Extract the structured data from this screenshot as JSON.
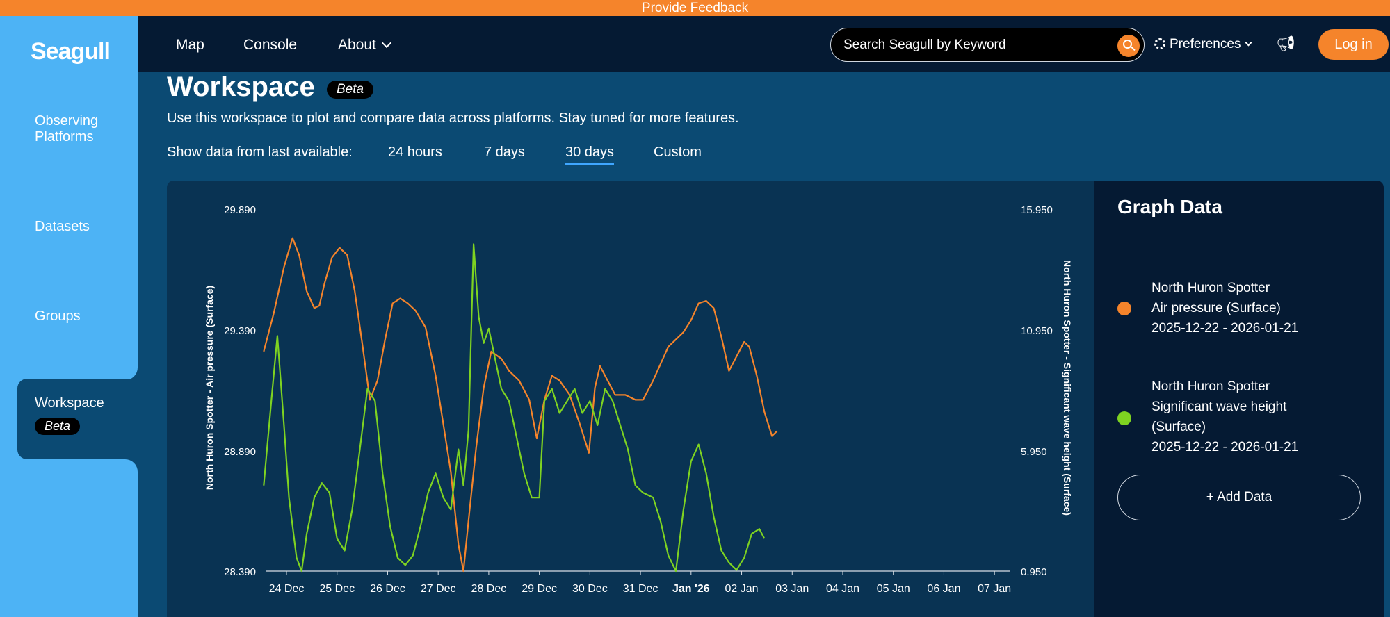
{
  "feedback_bar": {
    "label": "Provide Feedback"
  },
  "sidebar": {
    "logo": "Seagull",
    "items": [
      {
        "label_line1": "Observing",
        "label_line2": "Platforms"
      },
      {
        "label": "Datasets"
      },
      {
        "label": "Groups"
      },
      {
        "label": "Workspace",
        "badge": "Beta",
        "active": true
      }
    ]
  },
  "topnav": {
    "links": [
      {
        "label": "Map"
      },
      {
        "label": "Console"
      },
      {
        "label": "About"
      }
    ],
    "search_placeholder": "Search Seagull by Keyword",
    "preferences_label": "Preferences",
    "login_label": "Log in"
  },
  "workspace": {
    "title": "Workspace",
    "badge": "Beta",
    "subtitle": "Use this workspace to plot and compare data across platforms. Stay tuned for more features.",
    "range_label": "Show data from last available:",
    "ranges": [
      {
        "label": "24 hours"
      },
      {
        "label": "7 days"
      },
      {
        "label": "30 days",
        "active": true
      },
      {
        "label": "Custom"
      }
    ]
  },
  "chart_data": {
    "type": "line",
    "x": [
      "24 Dec",
      "25 Dec",
      "26 Dec",
      "27 Dec",
      "28 Dec",
      "29 Dec",
      "30 Dec",
      "31 Dec",
      "Jan '26",
      "02 Jan",
      "03 Jan",
      "04 Jan",
      "05 Jan",
      "06 Jan",
      "07 Jan"
    ],
    "x_bold": "Jan '26",
    "y_left": {
      "label": "North Huron Spotter - Air pressure (Surface)",
      "ticks": [
        "29.890",
        "29.390",
        "28.890",
        "28.390"
      ],
      "range": [
        28.39,
        29.89
      ]
    },
    "y_right": {
      "label": "North Huron Spotter - Significant wave height (Surface)",
      "ticks": [
        "15.950",
        "10.950",
        "5.950",
        "0.950"
      ],
      "range": [
        0.95,
        15.95
      ]
    },
    "series": [
      {
        "color": "#f5842b",
        "axis": "left",
        "points": [
          [
            23.55,
            29.3
          ],
          [
            23.75,
            29.46
          ],
          [
            23.95,
            29.65
          ],
          [
            24.12,
            29.77
          ],
          [
            24.25,
            29.7
          ],
          [
            24.4,
            29.55
          ],
          [
            24.55,
            29.48
          ],
          [
            24.65,
            29.49
          ],
          [
            24.75,
            29.58
          ],
          [
            24.9,
            29.69
          ],
          [
            25.05,
            29.73
          ],
          [
            25.2,
            29.7
          ],
          [
            25.35,
            29.55
          ],
          [
            25.5,
            29.33
          ],
          [
            25.65,
            29.1
          ],
          [
            25.8,
            29.18
          ],
          [
            25.95,
            29.35
          ],
          [
            26.1,
            29.5
          ],
          [
            26.25,
            29.52
          ],
          [
            26.4,
            29.5
          ],
          [
            26.55,
            29.47
          ],
          [
            26.75,
            29.4
          ],
          [
            26.95,
            29.2
          ],
          [
            27.1,
            29.0
          ],
          [
            27.25,
            28.8
          ],
          [
            27.4,
            28.5
          ],
          [
            27.5,
            28.39
          ],
          [
            27.6,
            28.6
          ],
          [
            27.75,
            28.9
          ],
          [
            27.9,
            29.15
          ],
          [
            28.05,
            29.3
          ],
          [
            28.25,
            29.27
          ],
          [
            28.4,
            29.22
          ],
          [
            28.6,
            29.18
          ],
          [
            28.8,
            29.1
          ],
          [
            28.95,
            28.94
          ],
          [
            29.1,
            29.1
          ],
          [
            29.25,
            29.2
          ],
          [
            29.4,
            29.18
          ],
          [
            29.6,
            29.12
          ],
          [
            29.8,
            29.0
          ],
          [
            29.98,
            28.88
          ],
          [
            30.1,
            29.15
          ],
          [
            30.2,
            29.24
          ],
          [
            30.35,
            29.18
          ],
          [
            30.5,
            29.12
          ],
          [
            30.7,
            29.12
          ],
          [
            30.9,
            29.1
          ],
          [
            31.05,
            29.1
          ],
          [
            31.25,
            29.18
          ],
          [
            31.4,
            29.25
          ],
          [
            31.55,
            29.32
          ],
          [
            31.7,
            29.35
          ],
          [
            31.85,
            29.38
          ],
          [
            32.0,
            29.43
          ],
          [
            32.15,
            29.5
          ],
          [
            32.3,
            29.51
          ],
          [
            32.45,
            29.48
          ],
          [
            32.6,
            29.36
          ],
          [
            32.75,
            29.22
          ],
          [
            32.9,
            29.28
          ],
          [
            33.05,
            29.34
          ],
          [
            33.15,
            29.32
          ],
          [
            33.3,
            29.2
          ],
          [
            33.45,
            29.05
          ],
          [
            33.6,
            28.95
          ],
          [
            33.7,
            28.97
          ]
        ]
      },
      {
        "color": "#7ed321",
        "axis": "right",
        "points": [
          [
            23.55,
            4.5
          ],
          [
            23.7,
            8.0
          ],
          [
            23.82,
            10.7
          ],
          [
            23.95,
            7.0
          ],
          [
            24.05,
            4.0
          ],
          [
            24.2,
            1.5
          ],
          [
            24.3,
            0.95
          ],
          [
            24.4,
            2.5
          ],
          [
            24.55,
            4.0
          ],
          [
            24.7,
            4.6
          ],
          [
            24.85,
            4.2
          ],
          [
            25.0,
            2.3
          ],
          [
            25.15,
            1.8
          ],
          [
            25.3,
            3.5
          ],
          [
            25.45,
            6.0
          ],
          [
            25.6,
            8.5
          ],
          [
            25.75,
            8.0
          ],
          [
            25.9,
            5.0
          ],
          [
            26.05,
            2.8
          ],
          [
            26.2,
            1.5
          ],
          [
            26.35,
            1.2
          ],
          [
            26.5,
            1.6
          ],
          [
            26.65,
            2.8
          ],
          [
            26.8,
            4.2
          ],
          [
            26.95,
            5.0
          ],
          [
            27.1,
            4.0
          ],
          [
            27.25,
            3.5
          ],
          [
            27.4,
            6.0
          ],
          [
            27.5,
            4.5
          ],
          [
            27.6,
            6.8
          ],
          [
            27.7,
            14.5
          ],
          [
            27.8,
            11.5
          ],
          [
            27.9,
            10.4
          ],
          [
            28.0,
            11.0
          ],
          [
            28.1,
            10.0
          ],
          [
            28.25,
            8.5
          ],
          [
            28.4,
            8.0
          ],
          [
            28.55,
            6.5
          ],
          [
            28.7,
            5.0
          ],
          [
            28.85,
            4.0
          ],
          [
            29.0,
            4.0
          ],
          [
            29.1,
            8.0
          ],
          [
            29.25,
            8.5
          ],
          [
            29.4,
            7.5
          ],
          [
            29.55,
            8.0
          ],
          [
            29.7,
            8.5
          ],
          [
            29.85,
            7.5
          ],
          [
            30.0,
            8.0
          ],
          [
            30.15,
            7.0
          ],
          [
            30.3,
            8.5
          ],
          [
            30.45,
            8.0
          ],
          [
            30.6,
            7.0
          ],
          [
            30.75,
            6.0
          ],
          [
            30.9,
            4.5
          ],
          [
            31.05,
            4.2
          ],
          [
            31.25,
            4.0
          ],
          [
            31.4,
            3.0
          ],
          [
            31.55,
            1.6
          ],
          [
            31.7,
            0.95
          ],
          [
            31.85,
            3.5
          ],
          [
            32.0,
            5.5
          ],
          [
            32.15,
            6.2
          ],
          [
            32.3,
            5.0
          ],
          [
            32.45,
            3.2
          ],
          [
            32.6,
            1.8
          ],
          [
            32.75,
            1.3
          ],
          [
            32.9,
            1.0
          ],
          [
            33.05,
            1.5
          ],
          [
            33.2,
            2.5
          ],
          [
            33.35,
            2.7
          ],
          [
            33.45,
            2.3
          ]
        ]
      }
    ]
  },
  "graph_data_panel": {
    "title": "Graph Data",
    "entries": [
      {
        "color": "#f5842b",
        "line1": "North Huron Spotter",
        "line2": "Air pressure (Surface)",
        "line3": "2025-12-22 - 2026-01-21"
      },
      {
        "color": "#7ed321",
        "line1": "North Huron Spotter",
        "line2": "Significant wave height",
        "line3": "(Surface)",
        "line4": "2025-12-22 - 2026-01-21"
      }
    ],
    "add_label": "+ Add Data"
  }
}
